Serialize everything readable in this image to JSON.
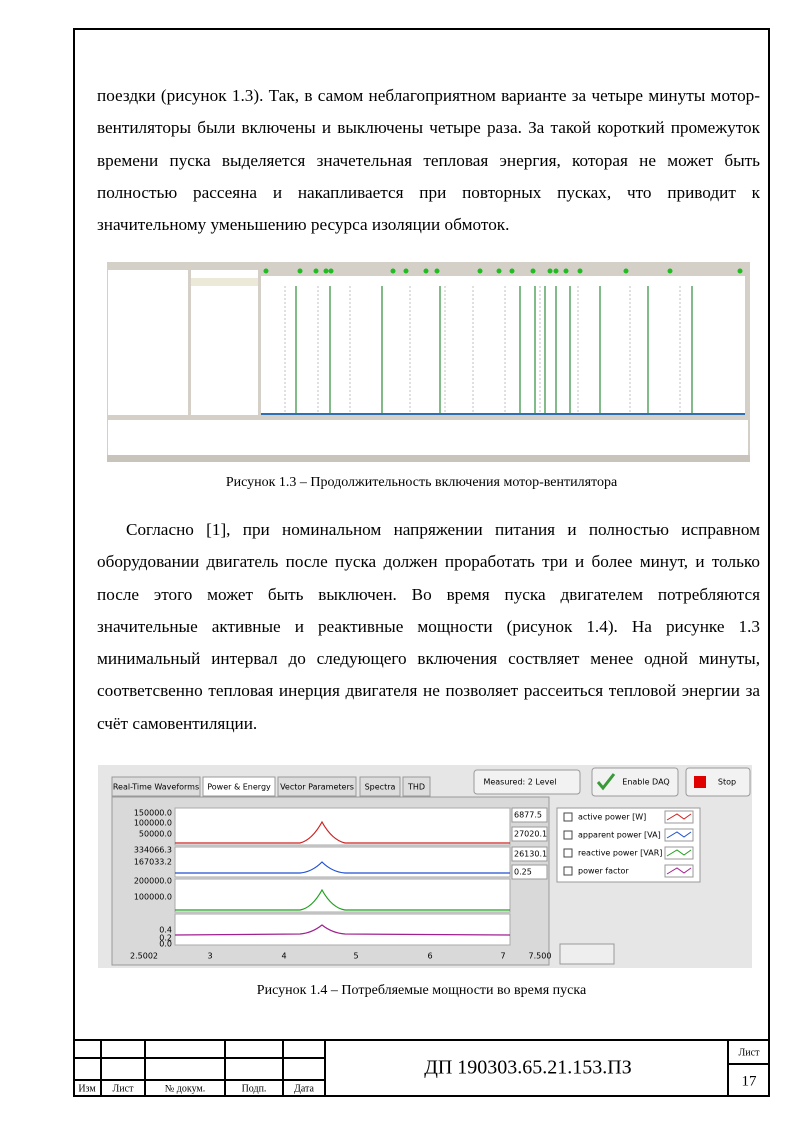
{
  "paragraphs": [
    "поездки (рисунок 1.3). Так, в самом неблагоприятном варианте за четыре минуты мотор-вентиляторы были включены и выключены четыре раза. За такой короткий промежуток времени пуска выделяется значетельная тепловая энергия, которая не может быть полностью рассеяна и накапливается при повторных пусках, что приводит к значительному уменьшению ресурса изоляции обмоток.",
    "Согласно [1], при номинальном напряжении питания и полностью исправном оборудовании двигатель после пуска должен проработать три и более минут, и только после этого может быть выключен. Во время пуска двигателем потребляются значительные активные и реактивные мощности (рисунок 1.4). На рисунке 1.3 минимальный интервал до следующего включения соствляет менее одной минуты, соответсвенно тепловая инерция двигателя не позволяет рассеиться тепловой энергии за счёт самовентиляции."
  ],
  "figures": [
    {
      "caption": "Рисунок 1.3 – Продолжительность включения мотор-вентилятора"
    },
    {
      "caption": "Рисунок 1.4 – Потребляемые мощности во время пуска",
      "tabs": [
        "Real-Time Waveforms",
        "Power & Energy",
        "Vector Parameters",
        "Spectra",
        "THD"
      ],
      "measured": "Measured: 2 Level",
      "enable_button": "Enable DAQ",
      "stop_button": "Stop",
      "y_labels": [
        "150000.0",
        "100000.0",
        "50000.0",
        "334066.3",
        "167033.2",
        "200000.0",
        "100000.0",
        "0.4",
        "0.2",
        "0.0"
      ],
      "x_labels": [
        "2.5002",
        "3",
        "4",
        "5",
        "6",
        "7",
        "7.500"
      ],
      "readouts": [
        "6877.5",
        "27020.1",
        "26130.1",
        "0.25"
      ],
      "legend": [
        "active power [W]",
        "apparent power [VA]",
        "reactive power [VAR]",
        "power factor"
      ]
    }
  ],
  "stamp": {
    "code": "ДП 190303.65.21.153.ПЗ",
    "sheet_label": "Лист",
    "sheet_number": "17",
    "columns": [
      "Изм",
      "Лист",
      "№ докум.",
      "Подп.",
      "Дата"
    ]
  }
}
